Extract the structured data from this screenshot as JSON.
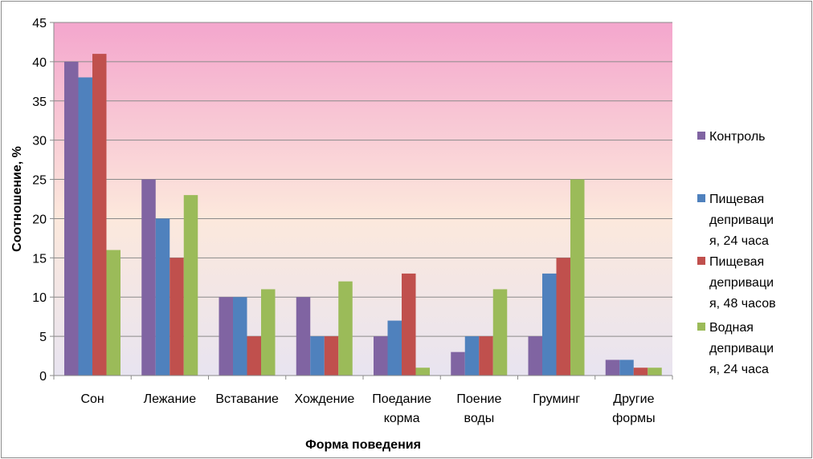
{
  "chart_data": {
    "type": "bar",
    "categories": [
      [
        "Сон"
      ],
      [
        "Лежание"
      ],
      [
        "Вставание"
      ],
      [
        "Хождение"
      ],
      [
        "Поедание",
        "корма"
      ],
      [
        "Поение",
        "воды"
      ],
      [
        "Груминг"
      ],
      [
        "Другие",
        "формы"
      ]
    ],
    "series": [
      {
        "name": [
          "Контроль"
        ],
        "color": "#8064a2",
        "values": [
          40,
          25,
          10,
          10,
          5,
          3,
          5,
          2
        ]
      },
      {
        "name": [
          "Пищевая",
          "деприваци",
          "я, 24 часа"
        ],
        "color": "#4f81bd",
        "values": [
          38,
          20,
          10,
          5,
          7,
          5,
          13,
          2
        ]
      },
      {
        "name": [
          "Пищевая",
          "деприваци",
          "я, 48 часов"
        ],
        "color": "#c0504d",
        "values": [
          41,
          15,
          5,
          5,
          13,
          5,
          15,
          1
        ]
      },
      {
        "name": [
          "Водная",
          "деприваци",
          "я, 24 часа"
        ],
        "color": "#9bbb59",
        "values": [
          16,
          23,
          11,
          12,
          1,
          11,
          25,
          1
        ]
      }
    ],
    "xlabel": "Форма поведения",
    "ylabel": "Соотношение, %",
    "ylim": [
      0,
      45
    ],
    "yticks": [
      "0",
      "5",
      "10",
      "15",
      "20",
      "25",
      "30",
      "35",
      "40",
      "45"
    ],
    "grid": true,
    "legend": "right",
    "plot_background": [
      "#f4a6cd",
      "#fce8dc",
      "#e8e4f0"
    ]
  }
}
